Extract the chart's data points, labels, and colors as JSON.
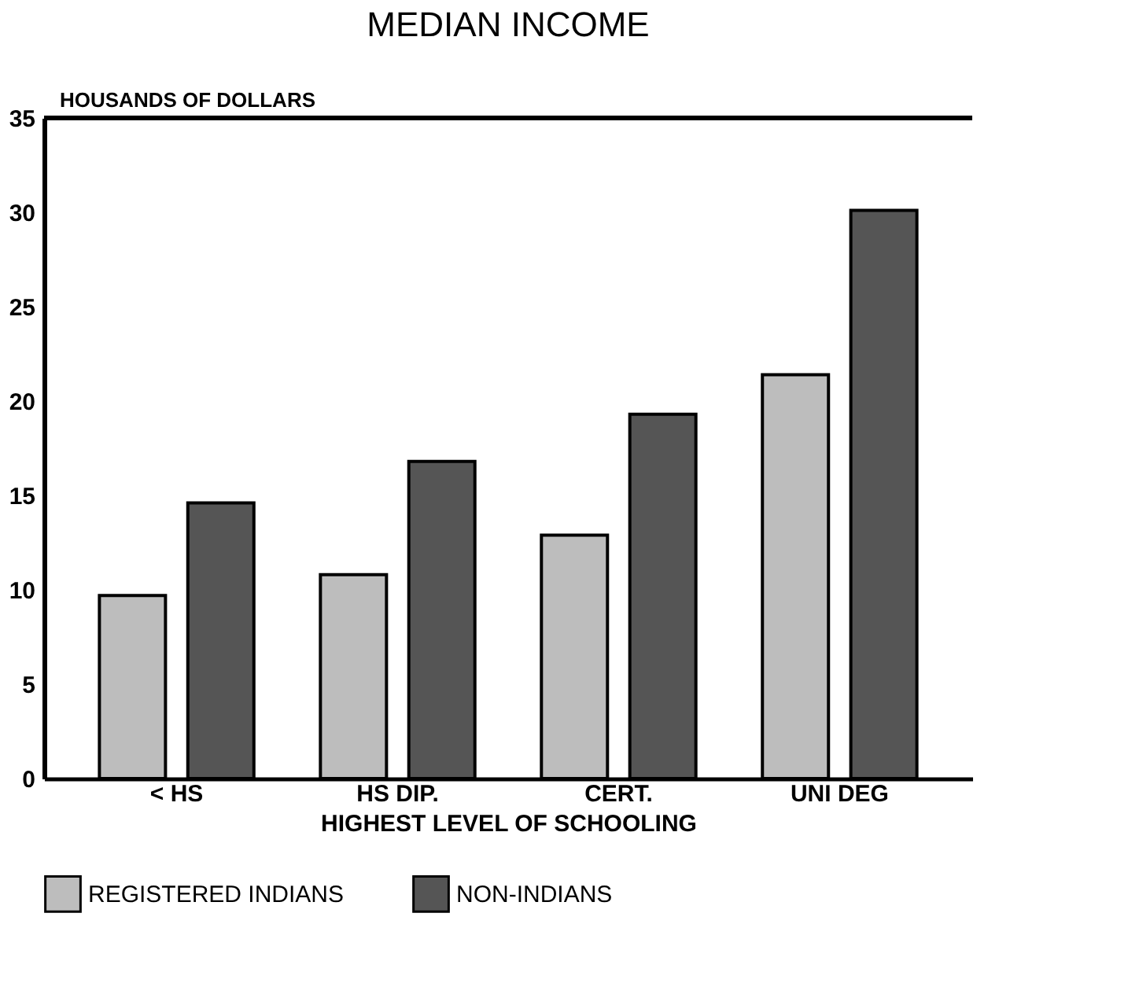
{
  "chart_data": {
    "type": "bar",
    "title": "MEDIAN INCOME",
    "ylabel": "HOUSANDS OF DOLLARS",
    "xlabel": "HIGHEST LEVEL OF SCHOOLING",
    "categories": [
      "< HS",
      "HS DIP.",
      "CERT.",
      "UNI DEG"
    ],
    "series": [
      {
        "name": "REGISTERED INDIANS",
        "color": "#bdbdbd",
        "values": [
          9.7,
          10.8,
          12.9,
          21.4
        ]
      },
      {
        "name": "NON-INDIANS",
        "color": "#555555",
        "values": [
          14.6,
          16.8,
          19.3,
          30.1
        ]
      }
    ],
    "ylim": [
      0,
      35
    ],
    "yticks": [
      0,
      5,
      10,
      15,
      20,
      25,
      30,
      35
    ],
    "grid": false,
    "legend": "bottom"
  }
}
